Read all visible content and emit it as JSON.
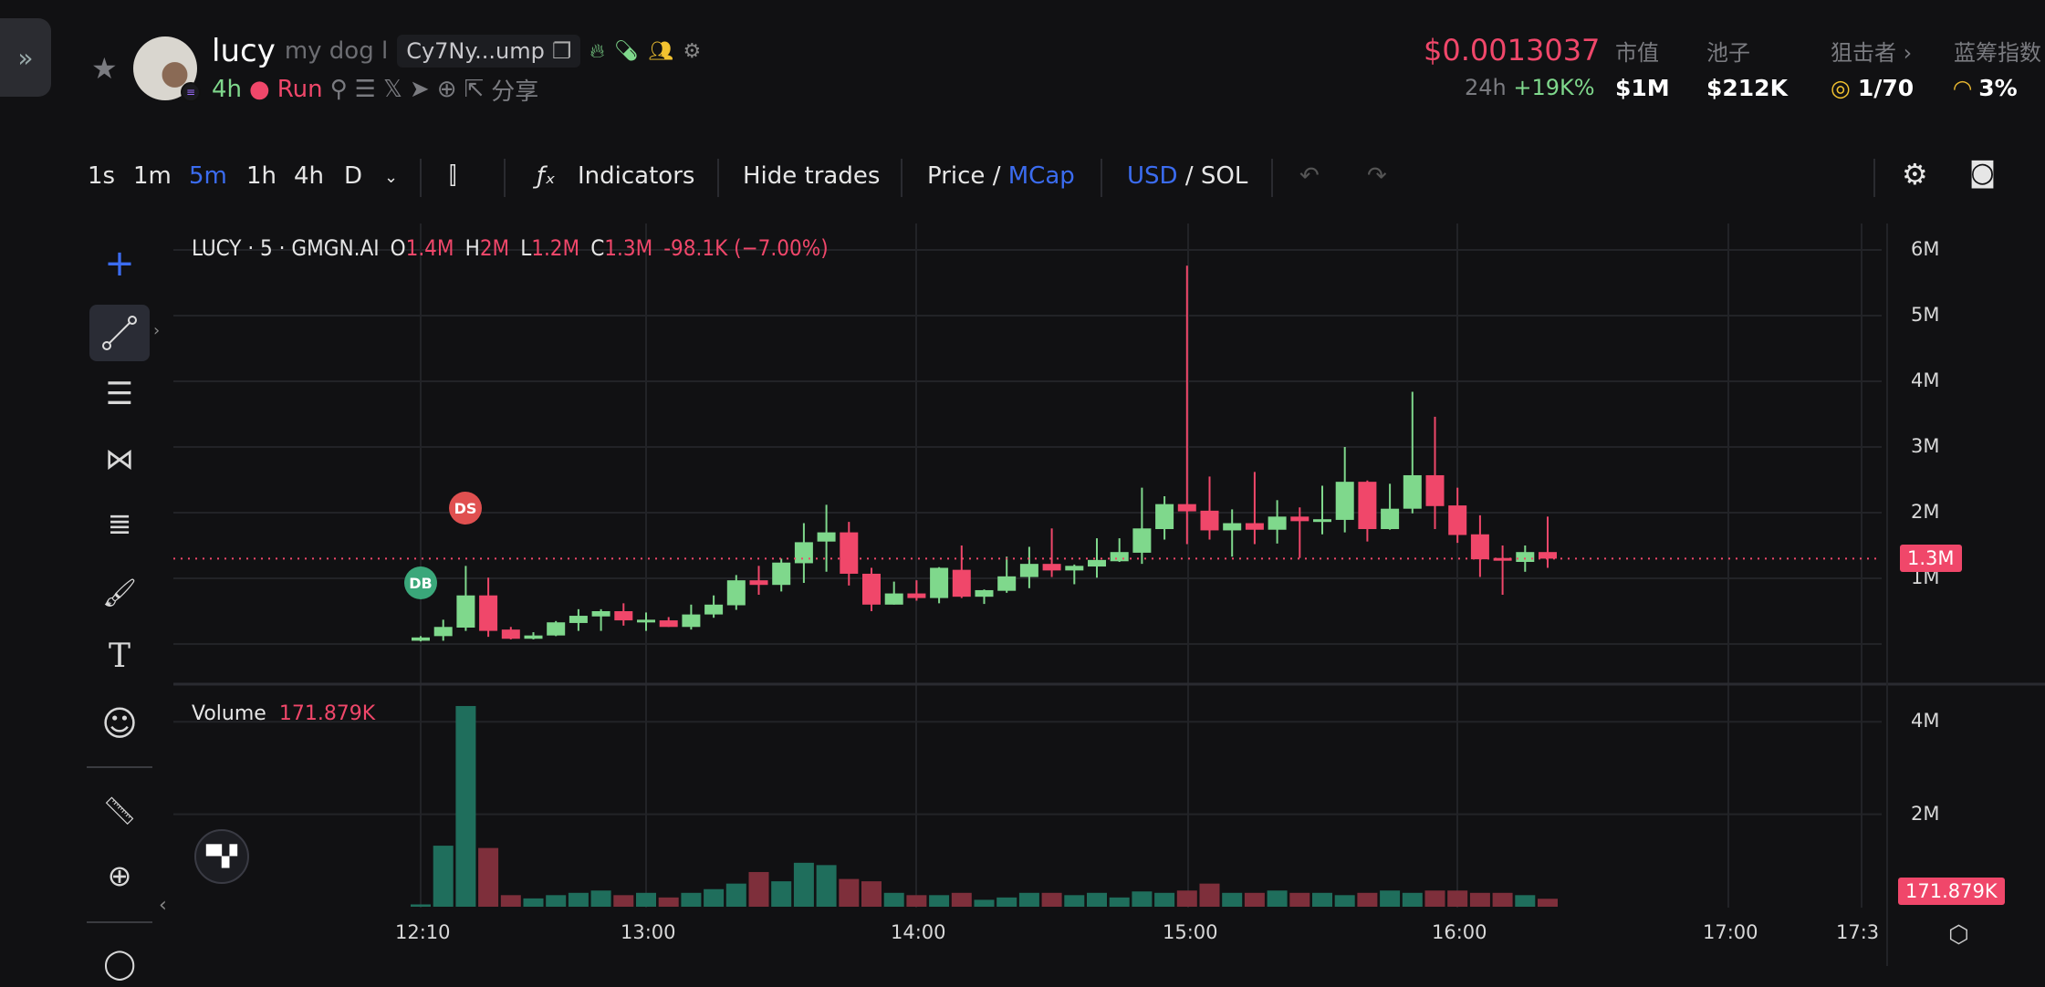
{
  "header": {
    "expand_icon": "»",
    "name": "lucy",
    "description": "my dog l",
    "address": "Cy7Ny...ump",
    "age": "4h",
    "run_label": "Run",
    "share_label": "分享",
    "price": "$0.0013037",
    "change_period": "24h",
    "change_value": "+19K%",
    "stats": [
      {
        "label": "市值",
        "value": "$1M"
      },
      {
        "label": "池子",
        "value": "$212K"
      },
      {
        "label": "狙击者 ›",
        "value": "1/70"
      },
      {
        "label": "蓝筹指数",
        "value": "3%"
      }
    ]
  },
  "toolbar": {
    "intervals": [
      "1s",
      "1m",
      "5m",
      "1h",
      "4h",
      "D"
    ],
    "active_interval": "5m",
    "indicators": "Indicators",
    "hide_trades": "Hide trades",
    "price": "Price",
    "slash": "/",
    "mcap": "MCap",
    "usd": "USD",
    "sol": "SOL"
  },
  "legend": {
    "symbol": "LUCY · 5 · GMGN.AI",
    "o_label": "O",
    "o": "1.4M",
    "h_label": "H",
    "h": "2M",
    "l_label": "L",
    "l": "1.2M",
    "c_label": "C",
    "c": "1.3M",
    "change": "-98.1K (−7.00%)"
  },
  "volume_legend": {
    "label": "Volume",
    "value": "171.879K"
  },
  "markers": {
    "db": "DB",
    "ds": "DS"
  },
  "logo": "TV",
  "colors": {
    "up": "#7fd88c",
    "down": "#f0476a",
    "vol_up": "#1f6e5c",
    "vol_down": "#7e2f3b",
    "accent": "#3b6cf0"
  },
  "chart_data": {
    "type": "candlestick",
    "interval_minutes": 5,
    "start_time": "12:10",
    "price_axis": {
      "ticks": [
        "6M",
        "5M",
        "4M",
        "3M",
        "2M",
        "1M"
      ],
      "range": [
        0,
        6.5
      ],
      "unit": "M"
    },
    "volume_axis": {
      "ticks": [
        "4M",
        "2M"
      ],
      "range": [
        0,
        4.5
      ],
      "unit": "M"
    },
    "x_ticks": [
      "12:10",
      "13:00",
      "14:00",
      "15:00",
      "16:00",
      "17:00",
      "17:3"
    ],
    "current_price_label": "1.3M",
    "current_volume_label": "171.879K",
    "candles": [
      [
        0.05,
        0.12,
        0.04,
        0.1
      ],
      [
        0.12,
        0.37,
        0.05,
        0.26
      ],
      [
        0.25,
        1.19,
        0.2,
        0.74
      ],
      [
        0.74,
        1.01,
        0.11,
        0.2
      ],
      [
        0.22,
        0.26,
        0.07,
        0.08
      ],
      [
        0.08,
        0.18,
        0.07,
        0.13
      ],
      [
        0.13,
        0.35,
        0.12,
        0.33
      ],
      [
        0.32,
        0.53,
        0.2,
        0.43
      ],
      [
        0.42,
        0.53,
        0.2,
        0.5
      ],
      [
        0.5,
        0.62,
        0.28,
        0.36
      ],
      [
        0.36,
        0.48,
        0.2,
        0.37
      ],
      [
        0.36,
        0.41,
        0.26,
        0.26
      ],
      [
        0.26,
        0.6,
        0.22,
        0.45
      ],
      [
        0.45,
        0.74,
        0.4,
        0.6
      ],
      [
        0.59,
        1.05,
        0.52,
        0.97
      ],
      [
        0.97,
        1.19,
        0.75,
        0.9
      ],
      [
        0.9,
        1.3,
        0.8,
        1.24
      ],
      [
        1.23,
        1.84,
        0.93,
        1.55
      ],
      [
        1.56,
        2.12,
        1.1,
        1.7
      ],
      [
        1.7,
        1.86,
        0.89,
        1.07
      ],
      [
        1.07,
        1.16,
        0.5,
        0.6
      ],
      [
        0.6,
        0.95,
        0.6,
        0.77
      ],
      [
        0.77,
        0.97,
        0.66,
        0.7
      ],
      [
        0.7,
        1.17,
        0.62,
        1.16
      ],
      [
        1.13,
        1.5,
        0.7,
        0.72
      ],
      [
        0.72,
        0.83,
        0.61,
        0.82
      ],
      [
        0.81,
        1.33,
        0.78,
        1.03
      ],
      [
        1.02,
        1.48,
        0.85,
        1.22
      ],
      [
        1.22,
        1.76,
        1.02,
        1.12
      ],
      [
        1.12,
        1.21,
        0.91,
        1.19
      ],
      [
        1.18,
        1.61,
        1.01,
        1.28
      ],
      [
        1.26,
        1.61,
        1.25,
        1.4
      ],
      [
        1.39,
        2.38,
        1.22,
        1.76
      ],
      [
        1.75,
        2.25,
        1.59,
        2.13
      ],
      [
        2.13,
        5.76,
        1.52,
        2.02
      ],
      [
        2.03,
        2.55,
        1.59,
        1.73
      ],
      [
        1.73,
        2.05,
        1.33,
        1.84
      ],
      [
        1.84,
        2.62,
        1.52,
        1.74
      ],
      [
        1.74,
        2.19,
        1.53,
        1.94
      ],
      [
        1.94,
        2.08,
        1.31,
        1.87
      ],
      [
        1.88,
        2.41,
        1.67,
        1.9
      ],
      [
        1.89,
        3.0,
        1.7,
        2.47
      ],
      [
        2.47,
        2.49,
        1.56,
        1.75
      ],
      [
        1.75,
        2.44,
        1.74,
        2.06
      ],
      [
        2.06,
        3.84,
        1.99,
        2.57
      ],
      [
        2.57,
        3.46,
        1.75,
        2.1
      ],
      [
        2.11,
        2.38,
        1.54,
        1.66
      ],
      [
        1.67,
        1.96,
        1.02,
        1.29
      ],
      [
        1.31,
        1.5,
        0.75,
        1.29
      ],
      [
        1.25,
        1.5,
        1.1,
        1.4
      ],
      [
        1.4,
        1.94,
        1.16,
        1.3
      ]
    ],
    "volumes": [
      0.05,
      1.32,
      4.34,
      1.27,
      0.25,
      0.18,
      0.25,
      0.3,
      0.35,
      0.25,
      0.3,
      0.2,
      0.3,
      0.38,
      0.5,
      0.75,
      0.55,
      0.95,
      0.9,
      0.6,
      0.55,
      0.3,
      0.25,
      0.25,
      0.3,
      0.15,
      0.2,
      0.3,
      0.3,
      0.25,
      0.3,
      0.2,
      0.33,
      0.3,
      0.35,
      0.5,
      0.3,
      0.3,
      0.35,
      0.3,
      0.3,
      0.25,
      0.3,
      0.35,
      0.3,
      0.35,
      0.35,
      0.3,
      0.3,
      0.25,
      0.172
    ]
  }
}
